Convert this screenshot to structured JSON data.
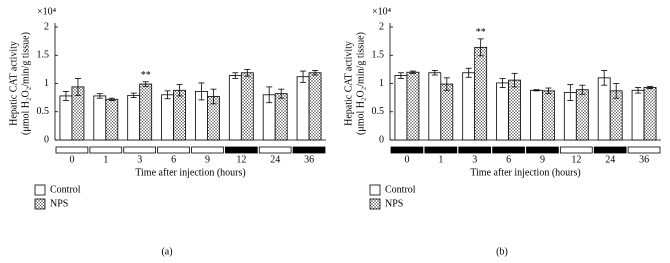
{
  "chart_data": [
    {
      "type": "bar",
      "panel_label": "(a)",
      "multiplier": "×10⁴",
      "ylabel": [
        "Hepatic CAT activity",
        "(μmol H₂O₂/min/g tissue)"
      ],
      "xlabel": "Time after injection (hours)",
      "categories": [
        "0",
        "1",
        "3",
        "6",
        "9",
        "12",
        "24",
        "36"
      ],
      "ylim": [
        0,
        2
      ],
      "yticks": [
        0,
        0.5,
        1,
        1.5,
        2
      ],
      "schedule_colors": [
        "#ffffff",
        "#ffffff",
        "#ffffff",
        "#ffffff",
        "#ffffff",
        "#000000",
        "#ffffff",
        "#000000"
      ],
      "series": [
        {
          "name": "Control",
          "color": "#ffffff",
          "hatch": false,
          "values": [
            0.78,
            0.78,
            0.79,
            0.8,
            0.86,
            1.14,
            0.8,
            1.12
          ],
          "errors": [
            0.08,
            0.04,
            0.04,
            0.07,
            0.15,
            0.05,
            0.14,
            0.1
          ]
        },
        {
          "name": "NPS",
          "color": "#d0d0d0",
          "hatch": true,
          "values": [
            0.94,
            0.72,
            0.99,
            0.88,
            0.77,
            1.19,
            0.82,
            1.19
          ],
          "errors": [
            0.15,
            0.02,
            0.04,
            0.1,
            0.13,
            0.06,
            0.08,
            0.04
          ],
          "annotations": [
            null,
            null,
            "**",
            null,
            null,
            null,
            null,
            null
          ]
        }
      ]
    },
    {
      "type": "bar",
      "panel_label": "(b)",
      "multiplier": "×10⁴",
      "ylabel": [
        "Hepatic CAT activity",
        "(μmol H₂O₂/min/g tissue)"
      ],
      "xlabel": "Time after injection (hours)",
      "categories": [
        "0",
        "1",
        "3",
        "6",
        "9",
        "12",
        "24",
        "36"
      ],
      "ylim": [
        0,
        2
      ],
      "yticks": [
        0,
        0.5,
        1,
        1.5,
        2
      ],
      "schedule_colors": [
        "#000000",
        "#000000",
        "#000000",
        "#000000",
        "#000000",
        "#ffffff",
        "#000000",
        "#ffffff"
      ],
      "series": [
        {
          "name": "Control",
          "color": "#ffffff",
          "hatch": false,
          "values": [
            1.14,
            1.19,
            1.19,
            1.01,
            0.88,
            0.84,
            1.1,
            0.88
          ],
          "errors": [
            0.05,
            0.04,
            0.08,
            0.08,
            0.01,
            0.14,
            0.13,
            0.05
          ]
        },
        {
          "name": "NPS",
          "color": "#d0d0d0",
          "hatch": true,
          "values": [
            1.2,
            0.99,
            1.64,
            1.06,
            0.87,
            0.89,
            0.87,
            0.93
          ],
          "errors": [
            0.02,
            0.11,
            0.15,
            0.12,
            0.05,
            0.08,
            0.13,
            0.02
          ],
          "annotations": [
            null,
            null,
            "**",
            null,
            null,
            null,
            null,
            null
          ]
        }
      ]
    }
  ]
}
